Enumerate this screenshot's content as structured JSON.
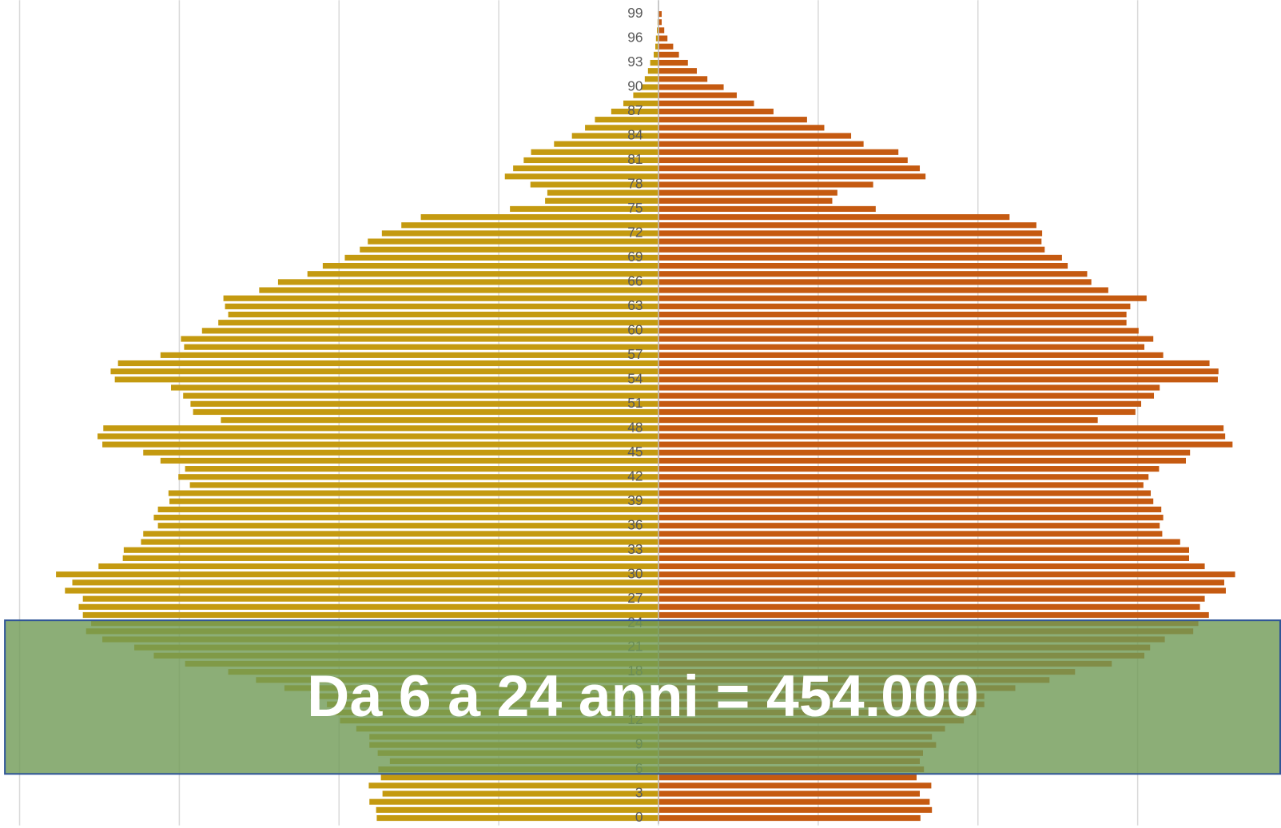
{
  "chart_data": {
    "type": "pyramid",
    "annotation": "Da 6 a 24 anni = 454.000",
    "categories": [
      "0",
      null,
      null,
      "3",
      null,
      null,
      "6",
      null,
      null,
      "9",
      null,
      null,
      "12",
      null,
      null,
      "15",
      null,
      null,
      "18",
      null,
      null,
      "21",
      null,
      null,
      "24",
      null,
      null,
      "27",
      null,
      null,
      "30",
      null,
      null,
      "33",
      null,
      null,
      "36",
      null,
      null,
      "39",
      null,
      null,
      "42",
      null,
      null,
      "45",
      null,
      null,
      "48",
      null,
      null,
      "51",
      null,
      null,
      "54",
      null,
      null,
      "57",
      null,
      null,
      "60",
      null,
      null,
      "63",
      null,
      null,
      "66",
      null,
      null,
      "69",
      null,
      null,
      "72",
      null,
      null,
      "75",
      null,
      null,
      "78",
      null,
      null,
      "81",
      null,
      null,
      "84",
      null,
      null,
      "87",
      null,
      null,
      "90",
      null,
      null,
      "93",
      null,
      null,
      "96",
      null,
      null,
      "99"
    ],
    "series": [
      {
        "color": "#c49a10",
        "values": [
          8820,
          8840,
          9050,
          8640,
          9070,
          8690,
          8770,
          8410,
          8790,
          9050,
          9050,
          9460,
          9970,
          10120,
          10380,
          10890,
          11710,
          12600,
          13470,
          14820,
          15800,
          16410,
          17410,
          17920,
          17760,
          18020,
          18150,
          18020,
          18580,
          18350,
          18860,
          17530,
          16770,
          16740,
          16200,
          16130,
          15670,
          15800,
          15670,
          15310,
          15340,
          14670,
          15030,
          14820,
          15590,
          16130,
          17410,
          17560,
          17380,
          13700,
          14570,
          14650,
          14880,
          15260,
          17020,
          17150,
          16920,
          15590,
          14850,
          14950,
          14290,
          13780,
          13470,
          13570,
          13620,
          12500,
          11910,
          10990,
          10510,
          9820,
          9350,
          9100,
          8660,
          8050,
          7440,
          4650,
          3550,
          3480,
          4010,
          4810,
          4550,
          4220,
          3990,
          3270,
          2710,
          2300,
          1990,
          1480,
          1100,
          790,
          540,
          430,
          330,
          260,
          150,
          100,
          80,
          50,
          30,
          20
        ]
      },
      {
        "color": "#c55a11",
        "values": [
          8200,
          8560,
          8490,
          8180,
          8540,
          8080,
          8310,
          8180,
          8280,
          8690,
          8560,
          8970,
          9560,
          9940,
          10200,
          10200,
          11170,
          12240,
          13040,
          14190,
          15210,
          15390,
          15850,
          16740,
          16900,
          17230,
          16950,
          17100,
          17760,
          17710,
          18050,
          17100,
          16610,
          16610,
          16330,
          15770,
          15690,
          15800,
          15740,
          15490,
          15410,
          15180,
          15340,
          15670,
          16510,
          16640,
          17970,
          17740,
          17690,
          13750,
          14930,
          15110,
          15510,
          15690,
          17510,
          17530,
          17250,
          15800,
          15210,
          15490,
          15030,
          14650,
          14650,
          14770,
          15280,
          14080,
          13550,
          13420,
          12810,
          12630,
          12090,
          11990,
          12010,
          11830,
          10990,
          6800,
          5440,
          5600,
          6720,
          8360,
          8180,
          7800,
          7510,
          6420,
          6030,
          5190,
          4650,
          3600,
          2990,
          2450,
          2040,
          1530,
          1200,
          920,
          640,
          460,
          280,
          180,
          100,
          100
        ]
      }
    ],
    "xlim": [
      -20000,
      19500
    ],
    "xticks": [
      -20000,
      -15000,
      -10000,
      -5000,
      0,
      5000,
      10000,
      15000
    ],
    "grid": true
  }
}
